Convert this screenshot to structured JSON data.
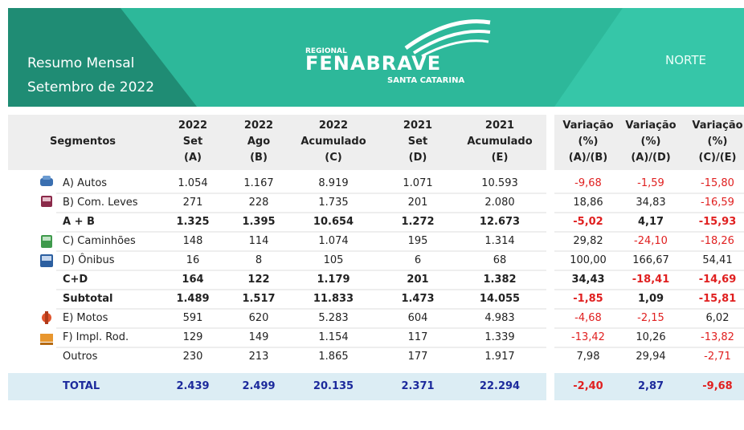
{
  "header": {
    "title_lines": [
      "Resumo Mensal",
      "Setembro de 2022"
    ],
    "logo": {
      "top": "REGIONAL",
      "main": "FENABRAVE",
      "sub": "SANTA CATARINA"
    },
    "region": "NORTE"
  },
  "table": {
    "segment_header": "Segmentos",
    "columns": [
      [
        "2022",
        "Set",
        "(A)"
      ],
      [
        "2022",
        "Ago",
        "(B)"
      ],
      [
        "2022",
        "Acumulado",
        "(C)"
      ],
      [
        "2021",
        "Set",
        "(D)"
      ],
      [
        "2021",
        "Acumulado",
        "(E)"
      ]
    ],
    "variation_columns": [
      [
        "Variação",
        "(%)",
        "(A)/(B)"
      ],
      [
        "Variação",
        "(%)",
        "(A)/(D)"
      ],
      [
        "Variação",
        "(%)",
        "(C)/(E)"
      ]
    ],
    "rows": [
      {
        "label": "A) Autos",
        "values": [
          "1.054",
          "1.167",
          "8.919",
          "1.071",
          "10.593"
        ],
        "variations": [
          "-9,68",
          "-1,59",
          "-15,80"
        ]
      },
      {
        "label": "B) Com. Leves",
        "values": [
          "271",
          "228",
          "1.735",
          "201",
          "2.080"
        ],
        "variations": [
          "18,86",
          "34,83",
          "-16,59"
        ]
      },
      {
        "label": "A + B",
        "values": [
          "1.325",
          "1.395",
          "10.654",
          "1.272",
          "12.673"
        ],
        "variations": [
          "-5,02",
          "4,17",
          "-15,93"
        ]
      },
      {
        "label": "C) Caminhões",
        "values": [
          "148",
          "114",
          "1.074",
          "195",
          "1.314"
        ],
        "variations": [
          "29,82",
          "-24,10",
          "-18,26"
        ]
      },
      {
        "label": "D) Ônibus",
        "values": [
          "16",
          "8",
          "105",
          "6",
          "68"
        ],
        "variations": [
          "100,00",
          "166,67",
          "54,41"
        ]
      },
      {
        "label": "C+D",
        "values": [
          "164",
          "122",
          "1.179",
          "201",
          "1.382"
        ],
        "variations": [
          "34,43",
          "-18,41",
          "-14,69"
        ]
      },
      {
        "label": "Subtotal",
        "values": [
          "1.489",
          "1.517",
          "11.833",
          "1.473",
          "14.055"
        ],
        "variations": [
          "-1,85",
          "1,09",
          "-15,81"
        ]
      },
      {
        "label": "E) Motos",
        "values": [
          "591",
          "620",
          "5.283",
          "604",
          "4.983"
        ],
        "variations": [
          "-4,68",
          "-2,15",
          "6,02"
        ]
      },
      {
        "label": "F) Impl. Rod.",
        "values": [
          "129",
          "149",
          "1.154",
          "117",
          "1.339"
        ],
        "variations": [
          "-13,42",
          "10,26",
          "-13,82"
        ]
      },
      {
        "label": "Outros",
        "values": [
          "230",
          "213",
          "1.865",
          "177",
          "1.917"
        ],
        "variations": [
          "7,98",
          "29,94",
          "-2,71"
        ]
      },
      {
        "label": "TOTAL",
        "values": [
          "2.439",
          "2.499",
          "20.135",
          "2.371",
          "22.294"
        ],
        "variations": [
          "-2,40",
          "2,87",
          "-9,68"
        ]
      }
    ]
  }
}
